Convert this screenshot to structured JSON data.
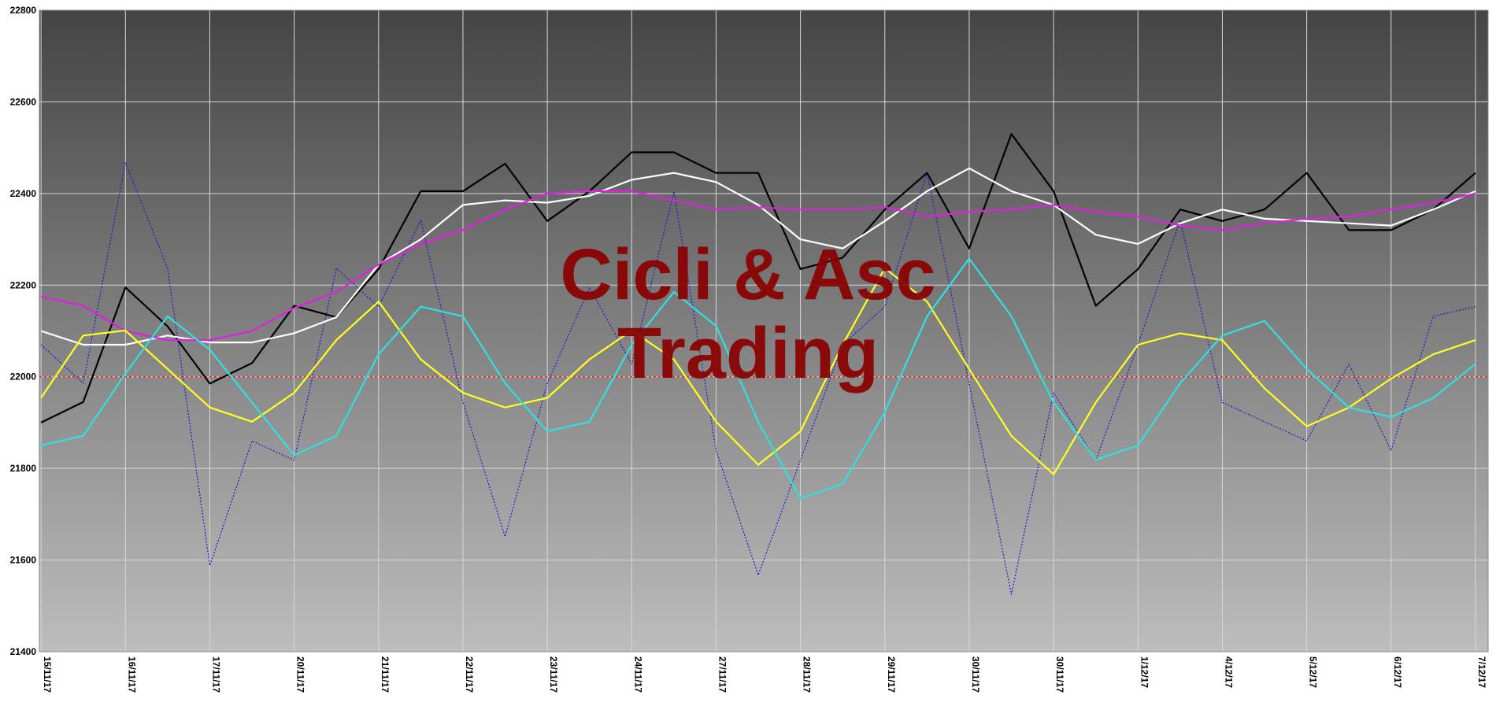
{
  "chart_data": {
    "type": "line",
    "annotations": [
      "Cicli & Asc",
      "Trading"
    ],
    "x": [
      0,
      5,
      10,
      15,
      20,
      25,
      30,
      35,
      40,
      45,
      50,
      55,
      60,
      65,
      70,
      75,
      80,
      85,
      90,
      95,
      100,
      105,
      110,
      115,
      120,
      125,
      130,
      135,
      140,
      145,
      150,
      155,
      160,
      165,
      170
    ],
    "xlim": [
      -0.2,
      171.5
    ],
    "xticks": [
      {
        "value": 0,
        "label": "15/11/17"
      },
      {
        "value": 10,
        "label": "16/11/17"
      },
      {
        "value": 20,
        "label": "17/11/17"
      },
      {
        "value": 30,
        "label": "20/11/17"
      },
      {
        "value": 40,
        "label": "21/11/17"
      },
      {
        "value": 50,
        "label": "22/11/17"
      },
      {
        "value": 60,
        "label": "23/11/17"
      },
      {
        "value": 70,
        "label": "24/11/17"
      },
      {
        "value": 80,
        "label": "27/11/17"
      },
      {
        "value": 90,
        "label": "28/11/17"
      },
      {
        "value": 100,
        "label": "29/11/17"
      },
      {
        "value": 110,
        "label": "30/11/17"
      },
      {
        "value": 120,
        "label": "30/11/17"
      },
      {
        "value": 130,
        "label": "1/12/17"
      },
      {
        "value": 140,
        "label": "4/12/17"
      },
      {
        "value": 150,
        "label": "5/12/17"
      },
      {
        "value": 160,
        "label": "6/12/17"
      },
      {
        "value": 170,
        "label": "7/12/17"
      }
    ],
    "ylim": [
      21400,
      22800
    ],
    "yticks": [
      21400,
      21600,
      21800,
      22000,
      22200,
      22400,
      22600,
      22800
    ],
    "grid": true,
    "hline": {
      "value": 22000,
      "color": "#ff2020"
    },
    "series": [
      {
        "color": "#1a1acc",
        "style": "dashed",
        "values": [
          22070,
          21986,
          22467,
          22237,
          21588,
          21860,
          21818,
          22237,
          22153,
          22342,
          21944,
          21651,
          21986,
          22195,
          22028,
          22404,
          21839,
          21567,
          21818,
          22070,
          22153,
          22446,
          21986,
          21525,
          21965,
          21818,
          22070,
          22342,
          21944,
          21902,
          21860,
          22028,
          21839,
          22132,
          22153
        ]
      },
      {
        "color": "#000000",
        "style": "solid",
        "values": [
          21900,
          21945,
          22195,
          22110,
          21985,
          22030,
          22155,
          22130,
          22235,
          22405,
          22405,
          22465,
          22340,
          22405,
          22490,
          22490,
          22445,
          22445,
          22235,
          22260,
          22365,
          22445,
          22280,
          22530,
          22405,
          22155,
          22235,
          22365,
          22340,
          22365,
          22445,
          22320,
          22320,
          22365,
          22445
        ]
      },
      {
        "color": "#ffffff",
        "style": "solid",
        "values": [
          22100,
          22070,
          22070,
          22090,
          22075,
          22075,
          22095,
          22130,
          22245,
          22300,
          22375,
          22385,
          22380,
          22395,
          22430,
          22445,
          22425,
          22375,
          22300,
          22280,
          22340,
          22405,
          22455,
          22405,
          22375,
          22310,
          22290,
          22335,
          22365,
          22345,
          22340,
          22335,
          22330,
          22365,
          22405
        ]
      },
      {
        "color": "#e020e0",
        "style": "solid",
        "values": [
          22175,
          22155,
          22100,
          22080,
          22080,
          22100,
          22150,
          22185,
          22245,
          22290,
          22320,
          22365,
          22400,
          22405,
          22405,
          22385,
          22365,
          22370,
          22365,
          22365,
          22370,
          22350,
          22360,
          22365,
          22375,
          22360,
          22350,
          22330,
          22320,
          22335,
          22345,
          22350,
          22365,
          22380,
          22400
        ]
      },
      {
        "color": "#ffff20",
        "style": "solid",
        "values": [
          21954,
          22090,
          22101,
          22017,
          21933,
          21902,
          21965,
          22080,
          22164,
          22038,
          21965,
          21933,
          21954,
          22038,
          22101,
          22038,
          21902,
          21808,
          21881,
          22070,
          22237,
          22164,
          22017,
          21871,
          21787,
          21944,
          22070,
          22095,
          22080,
          21975,
          21892,
          21933,
          21996,
          22049,
          22080
        ]
      },
      {
        "color": "#30e0e0",
        "style": "solid",
        "values": [
          21850,
          21871,
          22007,
          22132,
          22059,
          21944,
          21829,
          21871,
          22049,
          22153,
          22132,
          21986,
          21881,
          21902,
          22070,
          22185,
          22111,
          21902,
          21735,
          21766,
          21923,
          22132,
          22258,
          22132,
          21944,
          21819,
          21850,
          21986,
          22090,
          22122,
          22017,
          21933,
          21912,
          21954,
          22028
        ]
      }
    ]
  }
}
